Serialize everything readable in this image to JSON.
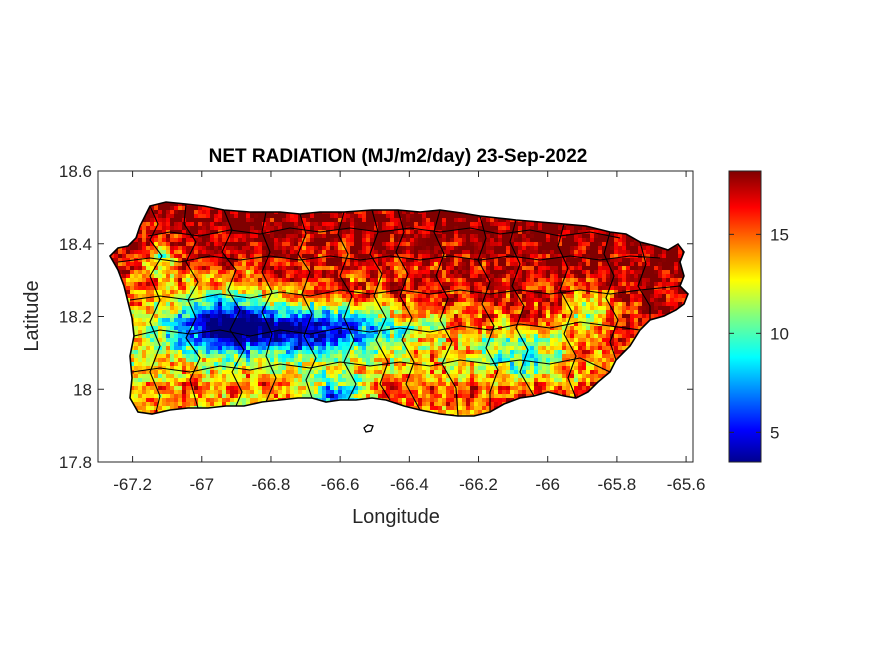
{
  "chart_data": {
    "type": "heatmap",
    "title": "NET RADIATION (MJ/m2/day) 23-Sep-2022",
    "xlabel": "Longitude",
    "ylabel": "Latitude",
    "xlim": [
      -67.3,
      -65.58
    ],
    "ylim": [
      17.8,
      18.6
    ],
    "x_ticks": [
      {
        "value": -67.2,
        "label": "-67.2"
      },
      {
        "value": -67.0,
        "label": "-67"
      },
      {
        "value": -66.8,
        "label": "-66.8"
      },
      {
        "value": -66.6,
        "label": "-66.6"
      },
      {
        "value": -66.4,
        "label": "-66.4"
      },
      {
        "value": -66.2,
        "label": "-66.2"
      },
      {
        "value": -66.0,
        "label": "-66"
      },
      {
        "value": -65.8,
        "label": "-65.8"
      },
      {
        "value": -65.6,
        "label": "-65.6"
      }
    ],
    "y_ticks": [
      {
        "value": 17.8,
        "label": "17.8"
      },
      {
        "value": 18.0,
        "label": "18"
      },
      {
        "value": 18.2,
        "label": "18.2"
      },
      {
        "value": 18.4,
        "label": "18.4"
      },
      {
        "value": 18.6,
        "label": "18.6"
      }
    ],
    "colorbar": {
      "colormap": "jet",
      "range": [
        3.5,
        18.2
      ],
      "ticks": [
        {
          "value": 5,
          "label": "5"
        },
        {
          "value": 10,
          "label": "10"
        },
        {
          "value": 15,
          "label": "15"
        }
      ]
    },
    "region_summary": [
      {
        "region": "north and northeast coast",
        "value_range": [
          15,
          18
        ]
      },
      {
        "region": "central-west interior",
        "value_range": [
          4,
          10
        ]
      },
      {
        "region": "south coast",
        "value_range": [
          12,
          17
        ]
      },
      {
        "region": "southeast interior",
        "value_range": [
          9,
          14
        ]
      }
    ],
    "grid": false
  },
  "colors": {
    "axes_box": "#262626",
    "outline": "#000000",
    "background": "#ffffff"
  }
}
